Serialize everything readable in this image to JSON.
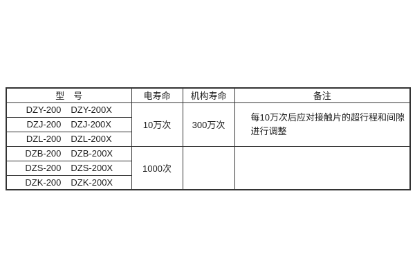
{
  "colors": {
    "background": "#ffffff",
    "border": "#333333",
    "text": "#1c1c1c"
  },
  "table": {
    "headers": {
      "model": "型　号",
      "electrical_life": "电寿命",
      "mechanism_life": "机构寿命",
      "remarks": "备注"
    },
    "groups": [
      {
        "rows": [
          [
            "DZY-200",
            "DZY-200X"
          ],
          [
            "DZJ-200",
            "DZJ-200X"
          ],
          [
            "DZL-200",
            "DZL-200X"
          ]
        ],
        "electrical_life": "10万次",
        "mechanism_life": "300万次",
        "remarks_lines": [
          "每10万次后应对接触片的超行程和间隙",
          "进行调整"
        ]
      },
      {
        "rows": [
          [
            "DZB-200",
            "DZB-200X"
          ],
          [
            "DZS-200",
            "DZS-200X"
          ],
          [
            "DZK-200",
            "DZK-200X"
          ]
        ],
        "electrical_life": "1000次",
        "mechanism_life": "",
        "remarks_lines": [
          "",
          ""
        ]
      }
    ]
  }
}
